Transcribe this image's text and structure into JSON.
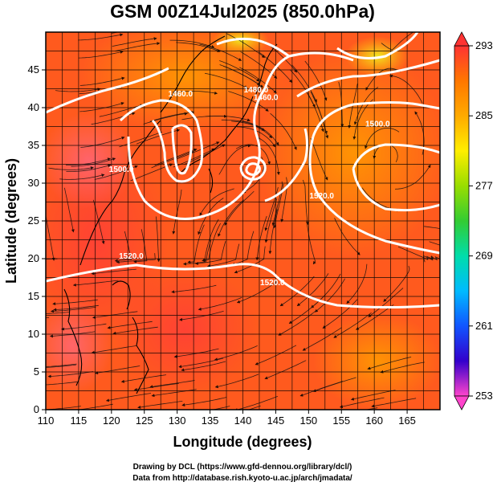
{
  "chart_data": {
    "type": "heatmap",
    "title": "GSM 00Z14Jul2025 (850.0hPa)",
    "xlabel": "Longitude (degrees)",
    "ylabel": "Latitude  (degrees)",
    "xlim": [
      110,
      170
    ],
    "ylim": [
      0,
      50
    ],
    "x_ticks": [
      "110",
      "115",
      "120",
      "125",
      "130",
      "135",
      "140",
      "145",
      "150",
      "155",
      "160",
      "165"
    ],
    "y_ticks": [
      "0",
      "5",
      "10",
      "15",
      "20",
      "25",
      "30",
      "35",
      "40",
      "45"
    ],
    "grid": true,
    "field": "temperature (shaded), geopotential height (white contours), wind (streamlines)",
    "colorbar": {
      "min": 253,
      "max": 293,
      "ticks": [
        "293",
        "285",
        "277",
        "269",
        "261",
        "253"
      ],
      "colors": [
        "#ff44cc",
        "#3300cc",
        "#1155ff",
        "#00bbff",
        "#00ddaa",
        "#33cc33",
        "#99dd00",
        "#ffee00",
        "#ffaa00",
        "#ff7700",
        "#ff3333"
      ]
    },
    "contours": [
      {
        "label": "1460.0",
        "lon": 130.5,
        "lat": 41.5
      },
      {
        "label": "1480.0",
        "lon": 142.0,
        "lat": 42.0
      },
      {
        "label": "1460.0",
        "lon": 143.5,
        "lat": 41.0
      },
      {
        "label": "1500.0",
        "lon": 160.5,
        "lat": 37.5
      },
      {
        "label": "1520.0",
        "lon": 152.0,
        "lat": 28.0
      },
      {
        "label": "1520.0",
        "lon": 144.5,
        "lat": 16.5
      },
      {
        "label": "1520.0",
        "lon": 123.0,
        "lat": 20.0
      },
      {
        "label": "1500.0",
        "lon": 121.5,
        "lat": 31.5
      }
    ],
    "credits": [
      "Drawing by DCL (https://www.gfd-dennou.org/library/dcl/)",
      "Data from http://database.rish.kyoto-u.ac.jp/arch/jmadata/"
    ]
  }
}
